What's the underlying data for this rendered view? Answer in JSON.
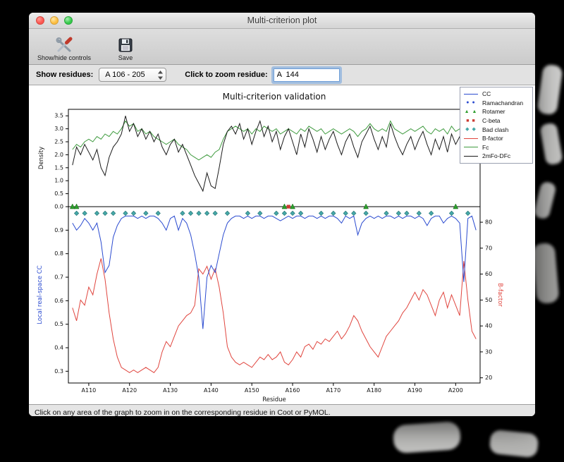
{
  "window": {
    "title": "Multi-criterion plot"
  },
  "toolbar": {
    "items": [
      {
        "label": "Show/hide controls"
      },
      {
        "label": "Save"
      }
    ]
  },
  "controls": {
    "show_residues_label": "Show residues:",
    "residue_range": "A 106 - 205",
    "zoom_label": "Click to zoom residue:",
    "zoom_value": "A  144"
  },
  "status": "Click on any area of the graph to zoom in on the corresponding residue in Coot or PyMOL.",
  "legend": {
    "entries": [
      {
        "label": "CC",
        "symbol": "line",
        "color": "#2b4bd0"
      },
      {
        "label": "Ramachandran",
        "symbol": "dots",
        "color": "#2b4bd0"
      },
      {
        "label": "Rotamer",
        "symbol": "triangles",
        "color": "#2e9e2e"
      },
      {
        "label": "C-beta",
        "symbol": "squares",
        "color": "#cc3b33"
      },
      {
        "label": "Bad clash",
        "symbol": "diamonds",
        "color": "#45a8a8"
      },
      {
        "label": "B-factor",
        "symbol": "line",
        "color": "#e0453e"
      },
      {
        "label": "Fc",
        "symbol": "line",
        "color": "#3f9b3f"
      },
      {
        "label": "2mFo-DFc",
        "symbol": "line",
        "color": "#1a1a1a"
      }
    ]
  },
  "chart_data": {
    "type": "line",
    "title": "Multi-criterion validation",
    "x_label": "Residue",
    "x_range": [
      105,
      206
    ],
    "residue_start": 106,
    "x_tick_residues": [
      110,
      120,
      130,
      140,
      150,
      160,
      170,
      180,
      190,
      200
    ],
    "x_tick_labels": [
      "A110",
      "A120",
      "A130",
      "A140",
      "A150",
      "A160",
      "A170",
      "A180",
      "A190",
      "A200"
    ],
    "top": {
      "ylabel": "Density",
      "ylim": [
        0,
        3.75
      ],
      "yticks": [
        0.0,
        0.5,
        1.0,
        1.5,
        2.0,
        2.5,
        3.0,
        3.5
      ],
      "series": [
        {
          "name": "Fc",
          "color": "#3f9b3f",
          "values": [
            2.2,
            2.4,
            2.3,
            2.5,
            2.6,
            2.5,
            2.7,
            2.6,
            2.8,
            2.7,
            2.9,
            2.8,
            3.0,
            3.3,
            3.1,
            3.2,
            2.9,
            3.0,
            2.8,
            2.9,
            2.7,
            2.6,
            2.5,
            2.4,
            2.5,
            2.6,
            2.4,
            2.3,
            2.2,
            2.0,
            1.9,
            1.8,
            1.9,
            2.0,
            1.9,
            2.1,
            2.2,
            2.6,
            2.9,
            3.0,
            3.1,
            3.0,
            2.9,
            3.0,
            2.8,
            3.0,
            2.9,
            3.1,
            3.0,
            2.9,
            3.0,
            2.8,
            2.9,
            3.0,
            2.9,
            2.8,
            3.0,
            2.9,
            3.1,
            3.0,
            2.9,
            3.0,
            2.8,
            2.9,
            3.0,
            2.9,
            2.8,
            2.9,
            3.0,
            2.9,
            2.7,
            2.9,
            3.0,
            3.2,
            3.0,
            2.9,
            3.0,
            2.9,
            3.3,
            3.0,
            2.9,
            2.8,
            2.9,
            3.0,
            2.9,
            3.0,
            3.1,
            2.9,
            2.8,
            3.0,
            2.9,
            3.0,
            2.8,
            3.1,
            2.9,
            3.0,
            2.6,
            3.0,
            2.9,
            2.8
          ]
        },
        {
          "name": "2mFo-DFc",
          "color": "#1a1a1a",
          "values": [
            1.6,
            2.3,
            2.0,
            2.4,
            2.1,
            1.8,
            2.2,
            1.5,
            1.2,
            1.9,
            2.3,
            2.5,
            2.8,
            3.5,
            2.9,
            3.2,
            2.7,
            3.0,
            2.6,
            2.9,
            2.5,
            2.8,
            2.3,
            2.0,
            2.4,
            2.6,
            2.1,
            2.4,
            2.0,
            1.6,
            1.2,
            0.9,
            0.6,
            1.3,
            0.8,
            0.7,
            1.5,
            2.4,
            2.9,
            3.1,
            2.8,
            3.2,
            2.6,
            3.0,
            2.4,
            2.9,
            3.3,
            2.7,
            3.1,
            2.5,
            2.9,
            2.2,
            2.7,
            3.0,
            2.5,
            2.0,
            2.8,
            2.3,
            3.0,
            2.6,
            2.1,
            2.7,
            2.2,
            2.6,
            2.9,
            2.4,
            2.0,
            2.5,
            2.8,
            2.3,
            1.9,
            2.5,
            2.8,
            3.1,
            2.6,
            2.2,
            2.7,
            2.3,
            3.2,
            2.7,
            2.3,
            2.0,
            2.4,
            2.7,
            2.2,
            2.6,
            2.9,
            2.4,
            2.0,
            2.6,
            2.2,
            2.7,
            2.1,
            2.8,
            2.4,
            2.7,
            1.9,
            2.6,
            2.3,
            1.8
          ]
        }
      ]
    },
    "bottom": {
      "ylabel_left": "Local real-space CC",
      "ylabel_left_color": "#2b4bd0",
      "ylim_left": [
        0.25,
        1.0
      ],
      "yticks_left": [
        0.3,
        0.4,
        0.5,
        0.6,
        0.7,
        0.8,
        0.9
      ],
      "ylabel_right": "B-factor",
      "ylabel_right_color": "#e0453e",
      "ylim_right": [
        18,
        86
      ],
      "yticks_right": [
        20,
        30,
        40,
        50,
        60,
        70,
        80
      ],
      "series_left": [
        {
          "name": "CC",
          "color": "#2b4bd0",
          "values": [
            0.93,
            0.9,
            0.92,
            0.95,
            0.93,
            0.9,
            0.93,
            0.85,
            0.72,
            0.75,
            0.87,
            0.92,
            0.95,
            0.96,
            0.96,
            0.96,
            0.95,
            0.96,
            0.95,
            0.96,
            0.96,
            0.95,
            0.93,
            0.9,
            0.95,
            0.96,
            0.9,
            0.95,
            0.93,
            0.88,
            0.8,
            0.7,
            0.48,
            0.7,
            0.75,
            0.72,
            0.8,
            0.88,
            0.93,
            0.95,
            0.96,
            0.96,
            0.95,
            0.96,
            0.95,
            0.96,
            0.96,
            0.95,
            0.96,
            0.96,
            0.95,
            0.94,
            0.95,
            0.96,
            0.95,
            0.96,
            0.96,
            0.95,
            0.96,
            0.96,
            0.95,
            0.96,
            0.95,
            0.96,
            0.96,
            0.95,
            0.93,
            0.96,
            0.95,
            0.96,
            0.88,
            0.93,
            0.95,
            0.96,
            0.95,
            0.96,
            0.95,
            0.96,
            0.96,
            0.95,
            0.96,
            0.95,
            0.96,
            0.96,
            0.95,
            0.96,
            0.95,
            0.92,
            0.95,
            0.96,
            0.96,
            0.93,
            0.95,
            0.96,
            0.95,
            0.93,
            0.68,
            0.95,
            0.96,
            0.9
          ]
        }
      ],
      "series_right": [
        {
          "name": "B-factor",
          "color": "#e0453e",
          "values": [
            47,
            42,
            50,
            48,
            55,
            52,
            60,
            66,
            58,
            45,
            35,
            28,
            24,
            23,
            22,
            23,
            22,
            23,
            24,
            23,
            22,
            24,
            30,
            34,
            32,
            36,
            40,
            42,
            44,
            45,
            48,
            62,
            60,
            63,
            58,
            62,
            55,
            45,
            32,
            28,
            26,
            25,
            26,
            25,
            24,
            26,
            28,
            27,
            29,
            27,
            28,
            30,
            26,
            25,
            27,
            30,
            28,
            32,
            33,
            31,
            34,
            33,
            35,
            34,
            36,
            38,
            35,
            37,
            40,
            44,
            42,
            38,
            35,
            32,
            30,
            28,
            32,
            36,
            38,
            40,
            42,
            45,
            47,
            50,
            53,
            50,
            54,
            52,
            48,
            44,
            50,
            53,
            47,
            52,
            48,
            44,
            65,
            50,
            38,
            35
          ]
        }
      ],
      "outlier_markers": {
        "bad_clash": {
          "color": "#45a8a8",
          "residues": [
            107,
            109,
            112,
            114,
            116,
            119,
            121,
            124,
            127,
            133,
            135,
            137,
            139,
            141,
            144,
            149,
            152,
            156,
            158,
            160,
            162,
            167,
            170,
            173,
            175,
            178,
            183,
            186,
            188,
            191,
            194,
            199,
            203
          ]
        },
        "rotamer": {
          "color": "#2e9e2e",
          "residues": [
            106,
            107,
            158,
            160,
            178,
            200
          ]
        },
        "c_beta": {
          "color": "#cc3b33",
          "residues": [
            159
          ]
        },
        "ramachandran": {
          "color": "#2b4bd0",
          "residues": []
        }
      }
    }
  }
}
